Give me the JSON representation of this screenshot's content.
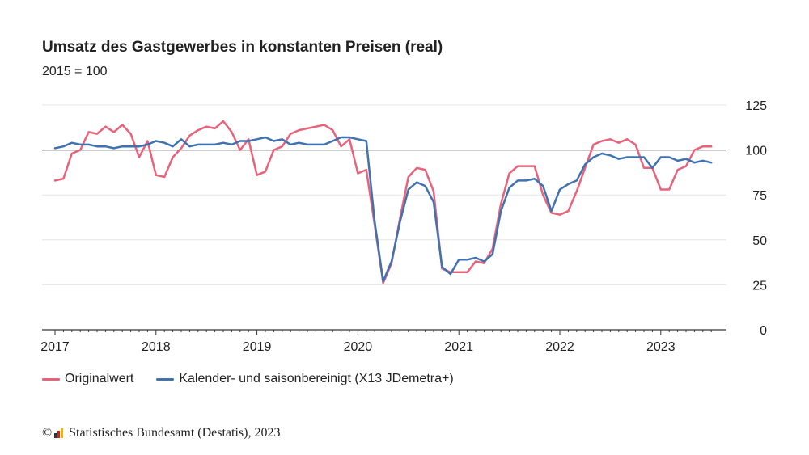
{
  "header": {
    "title": "Umsatz des Gastgewerbes in konstanten Preisen (real)",
    "subtitle": "2015 = 100"
  },
  "footer": {
    "copyright": "©",
    "source": "Statistisches Bundesamt (Destatis), 2023"
  },
  "colors": {
    "original": "#e8637a",
    "adjusted": "#3f72b0",
    "reference_line": "#333333",
    "grid": "#e6e6e6",
    "logo": [
      "#333333",
      "#d4201c",
      "#f2b400"
    ]
  },
  "chart_data": {
    "type": "line",
    "title": "Umsatz des Gastgewerbes in konstanten Preisen (real)",
    "subtitle": "2015 = 100",
    "xlabel": "",
    "ylabel": "",
    "ylim": [
      0,
      125
    ],
    "yticks": [
      "0",
      "25",
      "50",
      "75",
      "100",
      "125"
    ],
    "xticks": [
      "2017",
      "2018",
      "2019",
      "2020",
      "2021",
      "2022",
      "2023"
    ],
    "x_start": "2017-01",
    "x_end": "2023-07",
    "reference_line": 100,
    "grid": true,
    "legend_position": "bottom-left",
    "series": [
      {
        "name": "Originalwert",
        "color": "#e8637a",
        "values": [
          83,
          84,
          98,
          100,
          110,
          109,
          113,
          110,
          114,
          109,
          96,
          105,
          86,
          85,
          96,
          101,
          108,
          111,
          113,
          112,
          116,
          110,
          100,
          106,
          86,
          88,
          100,
          102,
          109,
          111,
          112,
          113,
          114,
          111,
          102,
          106,
          87,
          89,
          58,
          26,
          37,
          62,
          85,
          90,
          89,
          77,
          34,
          32,
          32,
          32,
          38,
          37,
          45,
          70,
          87,
          91,
          91,
          91,
          75,
          65,
          64,
          66,
          77,
          90,
          103,
          105,
          106,
          104,
          106,
          103,
          90,
          90,
          78,
          78,
          89,
          91,
          100,
          102,
          102
        ]
      },
      {
        "name": "Kalender- und saisonbereinigt (X13 JDemetra+)",
        "color": "#3f72b0",
        "values": [
          101,
          102,
          104,
          103,
          103,
          102,
          102,
          101,
          102,
          102,
          102,
          103,
          105,
          104,
          102,
          106,
          102,
          103,
          103,
          103,
          104,
          103,
          105,
          105,
          106,
          107,
          105,
          106,
          103,
          104,
          103,
          103,
          103,
          105,
          107,
          107,
          106,
          105,
          60,
          27,
          38,
          60,
          78,
          82,
          80,
          71,
          35,
          31,
          39,
          39,
          40,
          38,
          42,
          66,
          79,
          83,
          83,
          84,
          80,
          66,
          78,
          81,
          83,
          92,
          96,
          98,
          97,
          95,
          96,
          96,
          96,
          90,
          96,
          96,
          94,
          95,
          93,
          94,
          93
        ]
      }
    ]
  }
}
